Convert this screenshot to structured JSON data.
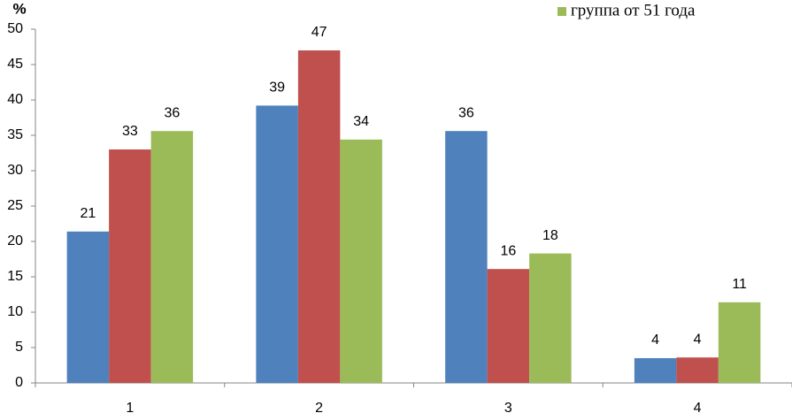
{
  "chart_data": {
    "type": "bar",
    "y_label": "%",
    "categories": [
      "1",
      "2",
      "3",
      "4"
    ],
    "series": [
      {
        "color": "#4f81bd",
        "values": [
          21.4,
          39.2,
          35.6,
          3.5
        ],
        "value_labels": [
          "21",
          "39",
          "36",
          "4"
        ]
      },
      {
        "color": "#c0504d",
        "values": [
          33,
          47,
          16.1,
          3.6
        ],
        "value_labels": [
          "33",
          "47",
          "16",
          "4"
        ]
      },
      {
        "name": "группа от 51 года",
        "color": "#9bbb59",
        "values": [
          35.6,
          34.4,
          18.3,
          11.4
        ],
        "value_labels": [
          "36",
          "34",
          "18",
          "11"
        ]
      }
    ],
    "ylim": [
      0,
      50
    ],
    "yticks": [
      0,
      5,
      10,
      15,
      20,
      25,
      30,
      35,
      40,
      45,
      50
    ],
    "grid": false
  }
}
